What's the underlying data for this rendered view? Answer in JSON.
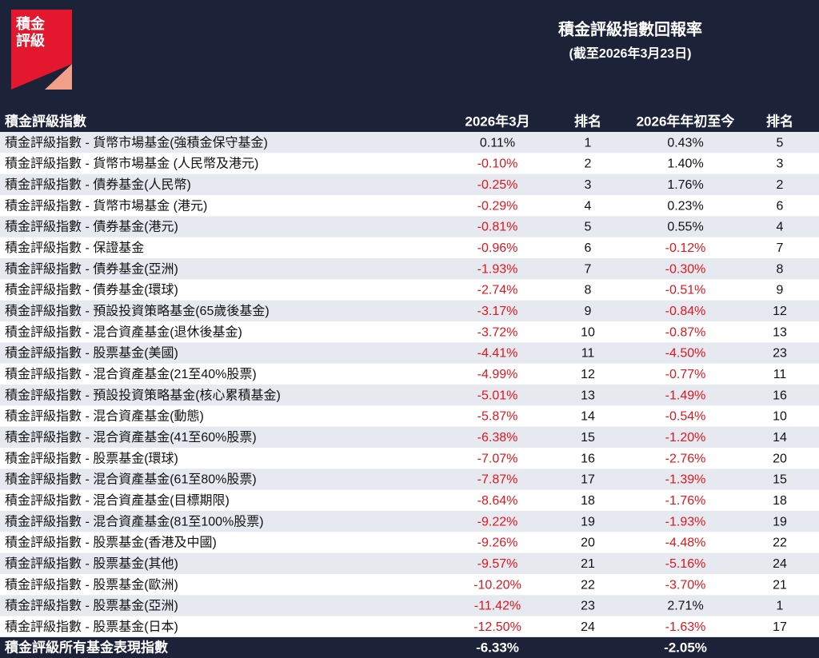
{
  "logo": {
    "lines": [
      "積金",
      "評級"
    ]
  },
  "header": {
    "title": "積金評級指數回報率",
    "subtitle": "(截至2026年3月23日)"
  },
  "table": {
    "columns": [
      "積金評級指數",
      "2026年3月",
      "排名",
      "2026年年初至今",
      "排名"
    ],
    "rows": [
      [
        "積金評級指數 - 貨幣市場基金(強積金保守基金)",
        "0.11%",
        1,
        "0.43%",
        5
      ],
      [
        "積金評級指數 - 貨幣市場基金 (人民幣及港元)",
        "-0.10%",
        2,
        "1.40%",
        3
      ],
      [
        "積金評級指數 - 債券基金(人民幣)",
        "-0.25%",
        3,
        "1.76%",
        2
      ],
      [
        "積金評級指數 - 貨幣市場基金 (港元)",
        "-0.29%",
        4,
        "0.23%",
        6
      ],
      [
        "積金評級指數 - 債券基金(港元)",
        "-0.81%",
        5,
        "0.55%",
        4
      ],
      [
        "積金評級指數 - 保證基金",
        "-0.96%",
        6,
        "-0.12%",
        7
      ],
      [
        "積金評級指數 - 債券基金(亞洲)",
        "-1.93%",
        7,
        "-0.30%",
        8
      ],
      [
        "積金評級指數 - 債券基金(環球)",
        "-2.74%",
        8,
        "-0.51%",
        9
      ],
      [
        "積金評級指數 - 預設投資策略基金(65歲後基金)",
        "-3.17%",
        9,
        "-0.84%",
        12
      ],
      [
        "積金評級指數 - 混合資產基金(退休後基金)",
        "-3.72%",
        10,
        "-0.87%",
        13
      ],
      [
        "積金評級指數 - 股票基金(美國)",
        "-4.41%",
        11,
        "-4.50%",
        23
      ],
      [
        "積金評級指數 - 混合資產基金(21至40%股票)",
        "-4.99%",
        12,
        "-0.77%",
        11
      ],
      [
        "積金評級指數 - 預設投資策略基金(核心累積基金)",
        "-5.01%",
        13,
        "-1.49%",
        16
      ],
      [
        "積金評級指數 - 混合資產基金(動態)",
        "-5.87%",
        14,
        "-0.54%",
        10
      ],
      [
        "積金評級指數 - 混合資產基金(41至60%股票)",
        "-6.38%",
        15,
        "-1.20%",
        14
      ],
      [
        "積金評級指數 - 股票基金(環球)",
        "-7.07%",
        16,
        "-2.76%",
        20
      ],
      [
        "積金評級指數 - 混合資產基金(61至80%股票)",
        "-7.87%",
        17,
        "-1.39%",
        15
      ],
      [
        "積金評級指數 - 混合資產基金(目標期限)",
        "-8.64%",
        18,
        "-1.76%",
        18
      ],
      [
        "積金評級指數 - 混合資產基金(81至100%股票)",
        "-9.22%",
        19,
        "-1.93%",
        19
      ],
      [
        "積金評級指數 - 股票基金(香港及中國)",
        "-9.26%",
        20,
        "-4.48%",
        22
      ],
      [
        "積金評級指數 - 股票基金(其他)",
        "-9.57%",
        21,
        "-5.16%",
        24
      ],
      [
        "積金評級指數 - 股票基金(歐洲)",
        "-10.20%",
        22,
        "-3.70%",
        21
      ],
      [
        "積金評級指數 - 股票基金(亞洲)",
        "-11.42%",
        23,
        "2.71%",
        1
      ],
      [
        "積金評級指數 - 股票基金(日本)",
        "-12.50%",
        24,
        "-1.63%",
        17
      ]
    ],
    "footer": [
      "積金評級所有基金表現指數",
      "-6.33%",
      "-2.05%"
    ]
  }
}
